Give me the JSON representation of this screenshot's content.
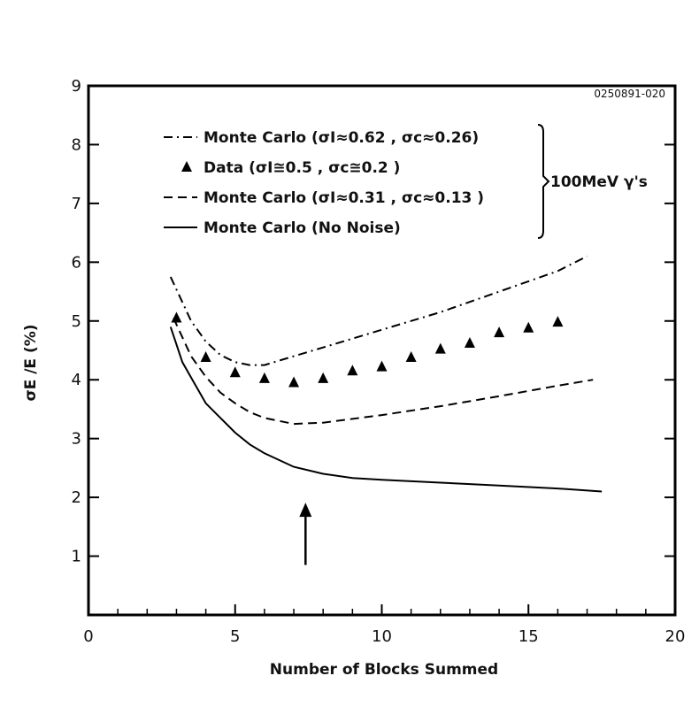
{
  "figure_code": "0250891-020",
  "chart_data": {
    "type": "line",
    "xlabel": "Number of Blocks Summed",
    "ylabel": "σE /E (%)",
    "xlim": [
      0,
      20
    ],
    "ylim": [
      0,
      9
    ],
    "x_ticks": [
      "0",
      "5",
      "10",
      "15",
      "20"
    ],
    "y_ticks": [
      "1",
      "2",
      "3",
      "4",
      "5",
      "6",
      "7",
      "8",
      "9"
    ],
    "grid": false,
    "legend_position": "top-center",
    "legend": [
      {
        "label": "Monte Carlo (σI≈0.62 , σc≈0.26)",
        "style": "dash-dot"
      },
      {
        "label": "Data (σI≅0.5 , σc≅0.2 )",
        "style": "triangle-marker"
      },
      {
        "label": "Monte Carlo (σI≈0.31 , σc≈0.13 )",
        "style": "dashed"
      },
      {
        "label": "Monte Carlo (No Noise)",
        "style": "solid"
      }
    ],
    "legend_bracket_label": "100MeV γ's",
    "series": [
      {
        "name": "Monte Carlo (σI≈0.62 , σc≈0.26)",
        "style": "dash-dot",
        "x": [
          2.8,
          3.5,
          4.0,
          4.5,
          5.0,
          5.5,
          6.0,
          7.0,
          8.0,
          10.0,
          12.0,
          14.0,
          16.0,
          17.0
        ],
        "y": [
          5.75,
          5.0,
          4.65,
          4.42,
          4.3,
          4.25,
          4.25,
          4.4,
          4.55,
          4.85,
          5.15,
          5.5,
          5.85,
          6.1
        ]
      },
      {
        "name": "Data (σI≅0.5 , σc≅0.2 )",
        "style": "markers",
        "x": [
          3,
          4,
          5,
          6,
          7,
          8,
          9,
          10,
          11,
          12,
          13,
          14,
          15,
          16
        ],
        "y": [
          5.05,
          4.38,
          4.12,
          4.02,
          3.95,
          4.02,
          4.15,
          4.22,
          4.38,
          4.52,
          4.62,
          4.8,
          4.88,
          4.98
        ]
      },
      {
        "name": "Monte Carlo (σI≈0.31 , σc≈0.13 )",
        "style": "dashed",
        "x": [
          2.9,
          3.5,
          4.0,
          4.5,
          5.0,
          5.5,
          6.0,
          7.0,
          8.0,
          10.0,
          12.0,
          14.0,
          16.0,
          17.2
        ],
        "y": [
          5.05,
          4.4,
          4.05,
          3.78,
          3.6,
          3.45,
          3.35,
          3.25,
          3.27,
          3.4,
          3.55,
          3.72,
          3.9,
          4.0
        ]
      },
      {
        "name": "Monte Carlo (No Noise)",
        "style": "solid",
        "x": [
          2.8,
          3.2,
          3.6,
          4.0,
          4.5,
          5.0,
          5.5,
          6.0,
          7.0,
          8.0,
          9.0,
          10.0,
          12.0,
          14.0,
          16.0,
          17.5
        ],
        "y": [
          4.9,
          4.3,
          3.95,
          3.6,
          3.35,
          3.1,
          2.9,
          2.75,
          2.52,
          2.4,
          2.33,
          2.3,
          2.25,
          2.2,
          2.15,
          2.1
        ]
      }
    ],
    "annotations": [
      {
        "type": "arrow",
        "x": 7.4,
        "y_from": 0.85,
        "y_to": 1.85,
        "direction": "up"
      }
    ]
  }
}
